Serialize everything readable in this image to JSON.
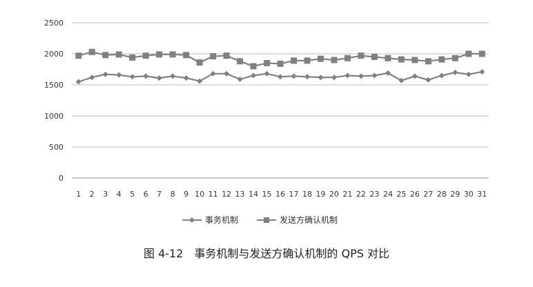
{
  "caption": "图 4-12　事务机制与发送方确认机制的 QPS 对比",
  "chart_data": {
    "type": "line",
    "x": [
      1,
      2,
      3,
      4,
      5,
      6,
      7,
      8,
      9,
      10,
      11,
      12,
      13,
      14,
      15,
      16,
      17,
      18,
      19,
      20,
      21,
      22,
      23,
      24,
      25,
      26,
      27,
      28,
      29,
      30,
      31
    ],
    "ylim": [
      0,
      2500
    ],
    "yticks": [
      0,
      500,
      1000,
      1500,
      2000,
      2500
    ],
    "grid": true,
    "legend_position": "bottom",
    "series": [
      {
        "name": "事务机制",
        "marker": "diamond",
        "color": "#808080",
        "values": [
          1550,
          1620,
          1670,
          1660,
          1630,
          1640,
          1610,
          1640,
          1610,
          1560,
          1680,
          1680,
          1590,
          1650,
          1680,
          1630,
          1640,
          1630,
          1620,
          1620,
          1650,
          1640,
          1650,
          1690,
          1570,
          1640,
          1580,
          1650,
          1700,
          1670,
          1710
        ]
      },
      {
        "name": "发送方确认机制",
        "marker": "square",
        "color": "#808080",
        "values": [
          1970,
          2030,
          1980,
          1990,
          1940,
          1970,
          1990,
          1990,
          1980,
          1860,
          1960,
          1970,
          1880,
          1800,
          1850,
          1840,
          1890,
          1890,
          1920,
          1900,
          1930,
          1970,
          1950,
          1930,
          1910,
          1900,
          1880,
          1910,
          1930,
          2000,
          2000
        ]
      }
    ]
  }
}
